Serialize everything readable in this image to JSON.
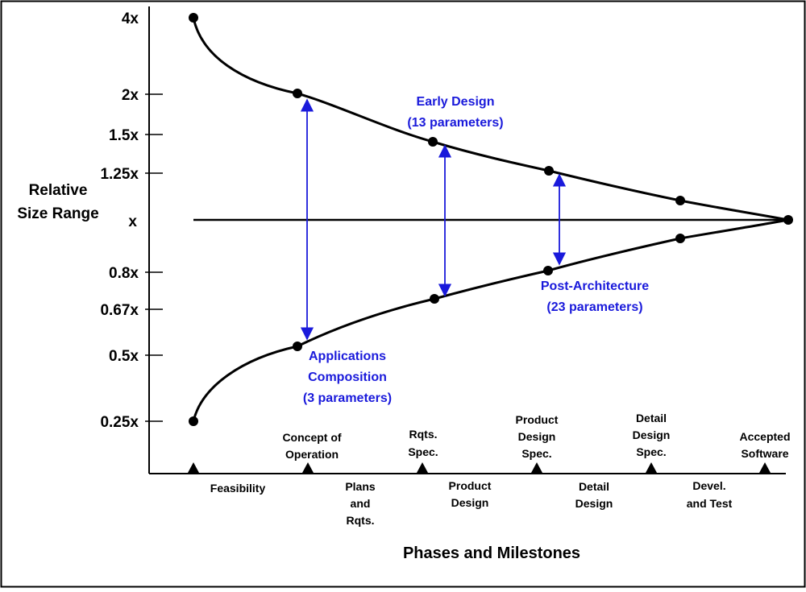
{
  "title": "",
  "y_axis": {
    "label_lines": [
      "Relative",
      "Size Range"
    ],
    "ticks": [
      {
        "label": "4x",
        "value": 4
      },
      {
        "label": "2x",
        "value": 2
      },
      {
        "label": "1.5x",
        "value": 1.5
      },
      {
        "label": "1.25x",
        "value": 1.25
      },
      {
        "label": "x",
        "value": 1
      },
      {
        "label": "0.8x",
        "value": 0.8
      },
      {
        "label": "0.67x",
        "value": 0.67
      },
      {
        "label": "0.5x",
        "value": 0.5
      },
      {
        "label": "0.25x",
        "value": 0.25
      }
    ]
  },
  "x_axis": {
    "label": "Phases and Milestones",
    "milestones": [
      {
        "lines": []
      },
      {
        "lines": [
          "Concept of",
          "Operation"
        ]
      },
      {
        "lines": [
          "Rqts.",
          "Spec."
        ]
      },
      {
        "lines": [
          "Product",
          "Design",
          "Spec."
        ]
      },
      {
        "lines": [
          "Detail",
          "Design",
          "Spec."
        ]
      },
      {
        "lines": [
          "Accepted",
          "Software"
        ]
      }
    ],
    "phases": [
      {
        "lines": [
          "Feasibility"
        ]
      },
      {
        "lines": [
          "Plans",
          "and",
          "Rqts."
        ]
      },
      {
        "lines": [
          "Product",
          "Design"
        ]
      },
      {
        "lines": [
          "Detail",
          "Design"
        ]
      },
      {
        "lines": [
          "Devel.",
          "and Test"
        ]
      }
    ]
  },
  "curves": {
    "upper_points": [
      4,
      2,
      1.5,
      1.25,
      1.12,
      1
    ],
    "lower_points": [
      0.25,
      0.5,
      0.67,
      0.8,
      0.9,
      1
    ]
  },
  "annotations": [
    {
      "lines": [
        "Early Design",
        "(13 parameters)"
      ]
    },
    {
      "lines": [
        "Post-Architecture",
        "(23 parameters)"
      ]
    },
    {
      "lines": [
        "Applications",
        "Composition",
        "(3 parameters)"
      ]
    }
  ],
  "colors": {
    "accent": "#1a1adb",
    "line": "#000000"
  }
}
